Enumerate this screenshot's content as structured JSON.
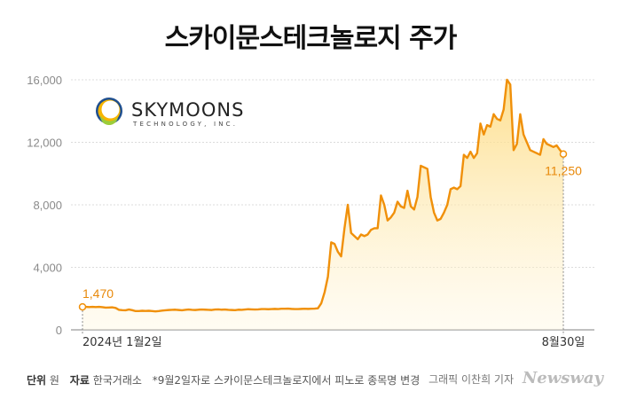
{
  "title": "스카이문스테크놀로지 주가",
  "logo": {
    "name": "SKYMOONS",
    "sub": "TECHNOLOGY, INC."
  },
  "chart_data": {
    "type": "area",
    "title": "스카이문스테크놀로지 주가",
    "xlabel": "",
    "ylabel": "",
    "ylim": [
      0,
      16000
    ],
    "grid": true,
    "y_ticks": [
      "16,000",
      "12,000",
      "8,000",
      "4,000",
      "0"
    ],
    "y_tick_values": [
      16000,
      12000,
      8000,
      4000,
      0
    ],
    "x_labels": [
      "2024년 1월2일",
      "8월30일"
    ],
    "start_value": 1470,
    "end_value": 11250,
    "start_label": "1,470",
    "end_label": "11,250",
    "line_color": "#f0900a",
    "fill_color": "#fde49a",
    "series": [
      {
        "values": [
          1470,
          1470,
          1460,
          1470,
          1460,
          1470,
          1450,
          1420,
          1430,
          1440,
          1400,
          1280,
          1260,
          1250,
          1300,
          1260,
          1200,
          1200,
          1220,
          1210,
          1220,
          1200,
          1180,
          1200,
          1230,
          1250,
          1270,
          1280,
          1290,
          1270,
          1250,
          1280,
          1300,
          1280,
          1270,
          1290,
          1300,
          1290,
          1280,
          1270,
          1300,
          1310,
          1290,
          1300,
          1280,
          1270,
          1260,
          1290,
          1280,
          1300,
          1320,
          1310,
          1300,
          1310,
          1330,
          1330,
          1320,
          1330,
          1340,
          1330,
          1350,
          1350,
          1360,
          1340,
          1330,
          1330,
          1340,
          1350,
          1340,
          1350,
          1360,
          1380,
          1700,
          2400,
          3400,
          5600,
          5500,
          5000,
          4700,
          6500,
          8000,
          6200,
          6000,
          5800,
          6100,
          6000,
          6100,
          6400,
          6500,
          6500,
          8600,
          8000,
          7000,
          7200,
          7500,
          8200,
          7900,
          7800,
          8900,
          7900,
          7700,
          8500,
          10500,
          10400,
          10300,
          8500,
          7500,
          7000,
          7100,
          7500,
          8000,
          9000,
          9100,
          9000,
          9200,
          11200,
          11000,
          11400,
          11000,
          11300,
          13200,
          12500,
          13100,
          13000,
          13800,
          13500,
          13400,
          14100,
          16000,
          15700,
          11500,
          11900,
          13800,
          12500,
          12000,
          11500,
          11400,
          11300,
          11200,
          12200,
          11900,
          11800,
          11700,
          11800,
          11500,
          11250
        ]
      }
    ]
  },
  "footer": {
    "unit_key": "단위",
    "unit_val": "원",
    "source_key": "자료",
    "source_val": "한국거래소",
    "note": "*9월2일자로 스카이문스테크놀로지에서 피노로 종목명 변경"
  },
  "credit": {
    "text": "그래픽 이찬희 기자",
    "brand": "Newsway"
  }
}
